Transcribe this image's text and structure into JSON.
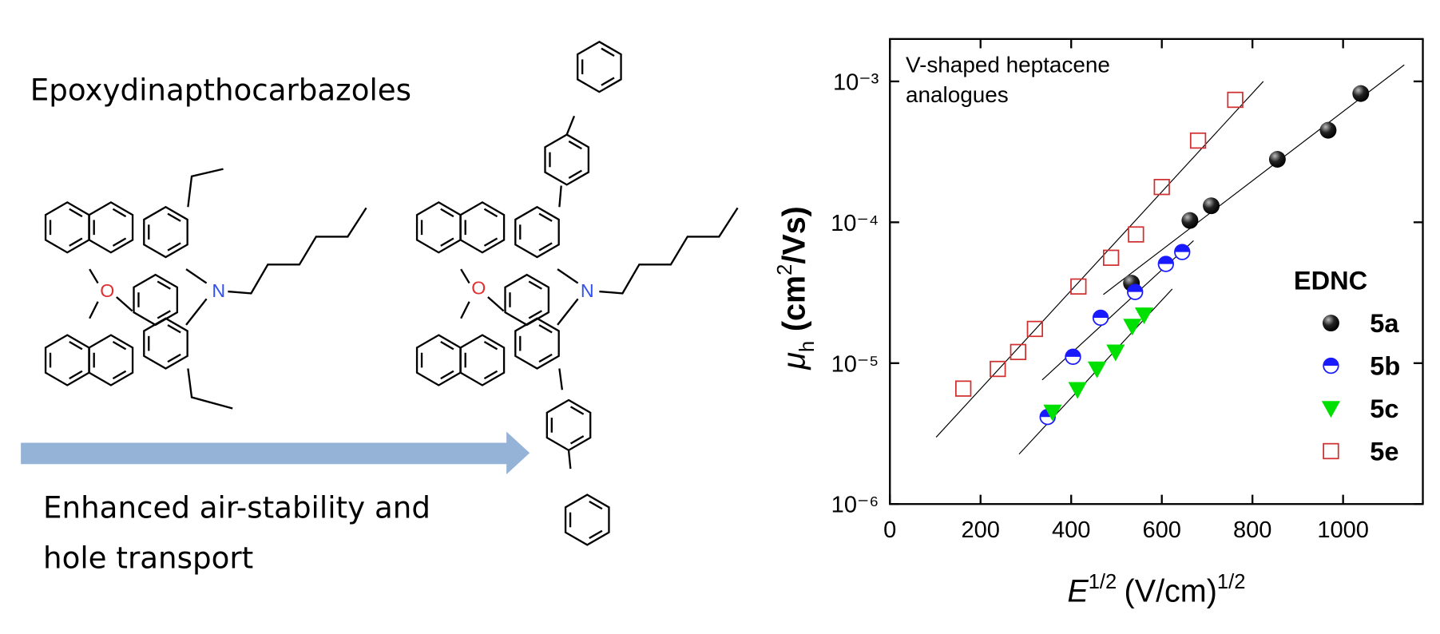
{
  "texts": {
    "compound_class": "Epoxydinapthocarbazoles",
    "caption": [
      "Enhanced air-stability and",
      "hole transport"
    ],
    "atom_labels": [
      "O",
      "N",
      "O",
      "N"
    ]
  },
  "chart_data": {
    "type": "scatter",
    "annotation": [
      "V-shaped heptacene",
      "analogues"
    ],
    "x_label": {
      "symbol": "E",
      "symbol_sup": "1/2",
      "unit": "(V/cm)",
      "unit_sup": "1/2"
    },
    "y_label": {
      "symbol": "μ",
      "symbol_sub": "h",
      "unit": "(cm",
      "unit_sup": "2",
      "unit_end": "/Vs)"
    },
    "xlim": [
      0,
      1176
    ],
    "xticks": [
      0,
      200,
      400,
      600,
      800,
      1000
    ],
    "ylim": [
      1e-06,
      0.002
    ],
    "log_y": true,
    "yticks": [
      {
        "value": 1e-06,
        "label": "10⁻⁶"
      },
      {
        "value": 1e-05,
        "label": "10⁻⁵"
      },
      {
        "value": 0.0001,
        "label": "10⁻⁴"
      },
      {
        "value": 0.001,
        "label": "10⁻³"
      }
    ],
    "legend_title": "EDNC",
    "legend_position": "right",
    "series": [
      {
        "name": "5a",
        "color": "#000000",
        "marker": "sphere",
        "x": [
          533,
          662,
          709,
          855,
          967,
          1039
        ],
        "values": [
          3.7e-05,
          0.000103,
          0.000131,
          0.00028,
          0.00045,
          0.00082
        ],
        "fit_x": [
          471,
          1135
        ],
        "fit_values": [
          3.07e-05,
          0.00131
        ]
      },
      {
        "name": "5b",
        "color": "#1a1aff",
        "marker": "half-circle",
        "x": [
          348,
          404,
          465,
          541,
          609,
          645
        ],
        "values": [
          4.15e-06,
          1.11e-05,
          2.1e-05,
          3.2e-05,
          5.06e-05,
          6.15e-05
        ],
        "fit_x": [
          336,
          670
        ],
        "fit_values": [
          7.6e-06,
          7.4e-05
        ]
      },
      {
        "name": "5c",
        "color": "#00e000",
        "marker": "triangle-down",
        "x": [
          359,
          414,
          457,
          498,
          535,
          561
        ],
        "values": [
          4.5e-06,
          6.5e-06,
          9.1e-06,
          1.2e-05,
          1.83e-05,
          2.2e-05
        ],
        "fit_x": [
          285,
          623
        ],
        "fit_values": [
          2.26e-06,
          3.36e-05
        ]
      },
      {
        "name": "5e",
        "color": "#d03030",
        "marker": "open-square",
        "x": [
          162,
          238,
          283,
          320,
          416,
          488,
          543,
          600,
          680,
          762
        ],
        "values": [
          6.6e-06,
          9.1e-06,
          1.2e-05,
          1.75e-05,
          3.5e-05,
          5.6e-05,
          8.2e-05,
          0.000178,
          0.00038,
          0.00074
        ],
        "fit_x": [
          102,
          824
        ],
        "fit_values": [
          2.98e-06,
          0.001
        ]
      }
    ]
  }
}
